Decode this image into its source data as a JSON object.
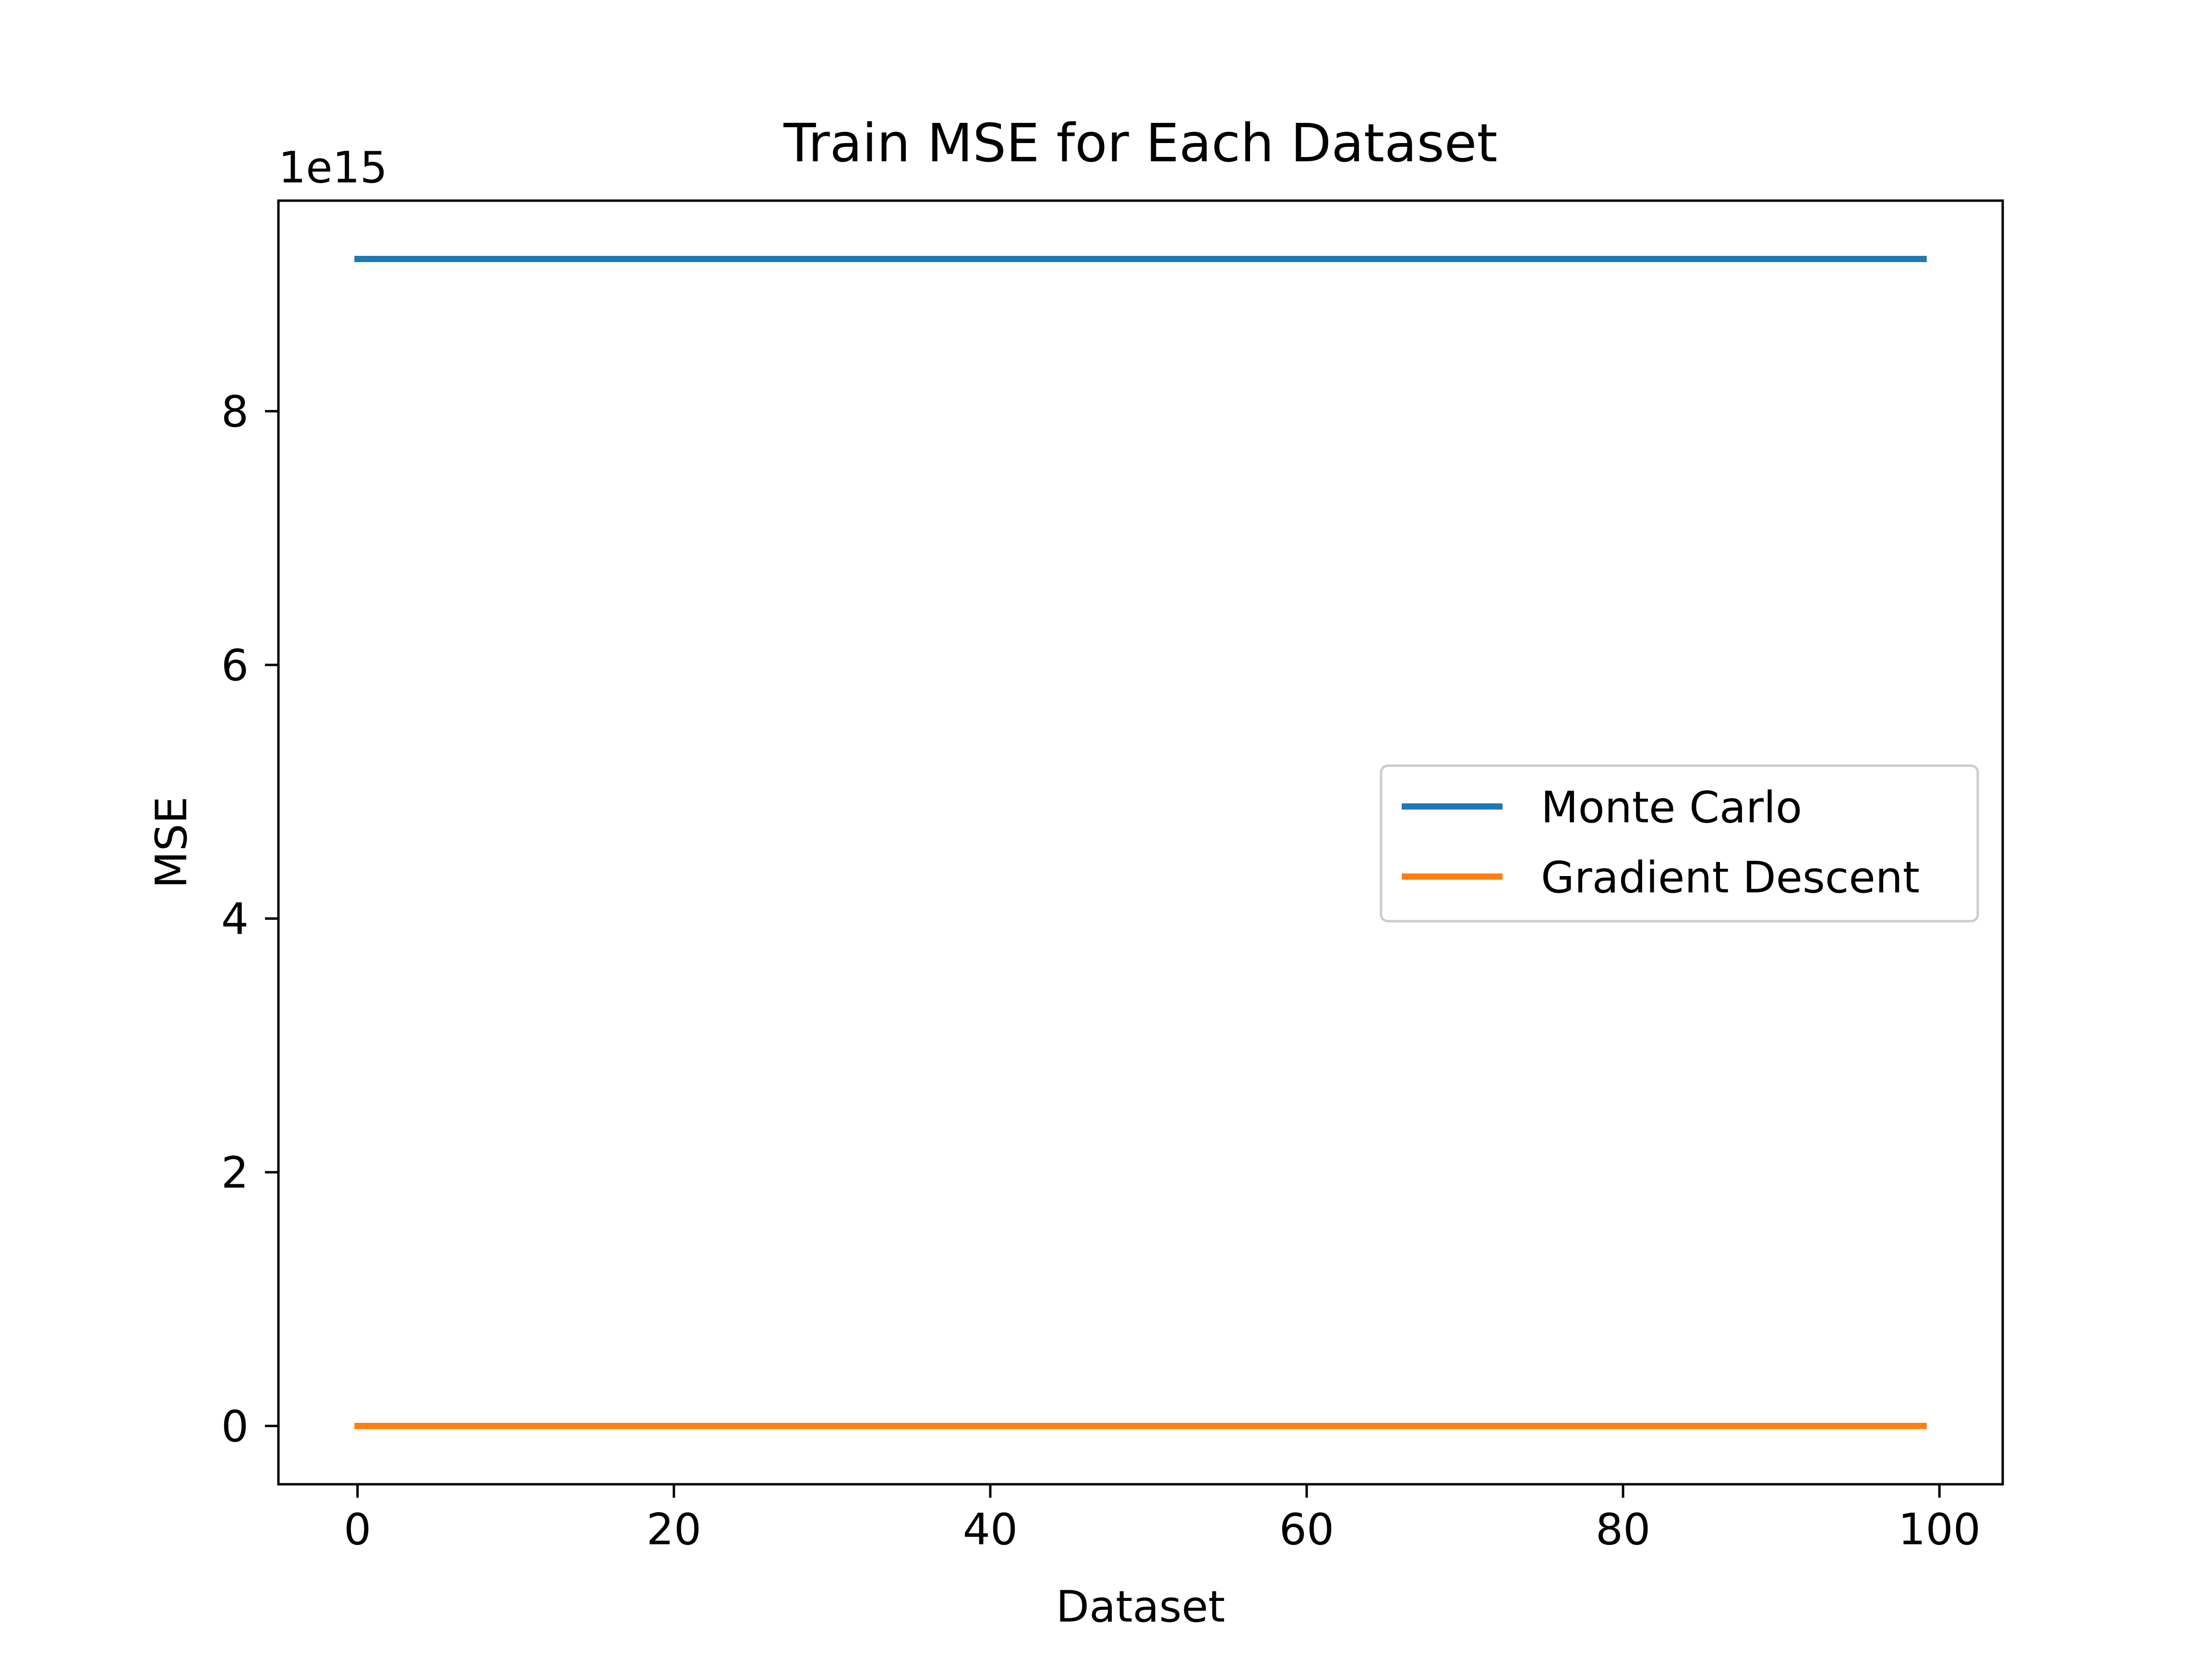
{
  "chart_data": {
    "type": "line",
    "title": "Train MSE for Each Dataset",
    "xlabel": "Dataset",
    "ylabel": "MSE",
    "y_offset_label": "1e15",
    "xlim": [
      -5,
      104
    ],
    "ylim": [
      -0.46,
      9.66
    ],
    "x_ticks": [
      0,
      20,
      40,
      60,
      80,
      100
    ],
    "x_tick_labels": [
      "0",
      "20",
      "40",
      "60",
      "80",
      "100"
    ],
    "y_ticks": [
      0,
      2,
      4,
      6,
      8
    ],
    "y_tick_labels": [
      "0",
      "2",
      "4",
      "6",
      "8"
    ],
    "grid": false,
    "legend_position": "center-right",
    "x": [
      0,
      99
    ],
    "series": [
      {
        "name": "Monte Carlo",
        "color": "#1f77b4",
        "values": [
          9.2,
          9.2
        ]
      },
      {
        "name": "Gradient Descent",
        "color": "#ff7f0e",
        "values": [
          0.0,
          0.0
        ]
      }
    ]
  }
}
